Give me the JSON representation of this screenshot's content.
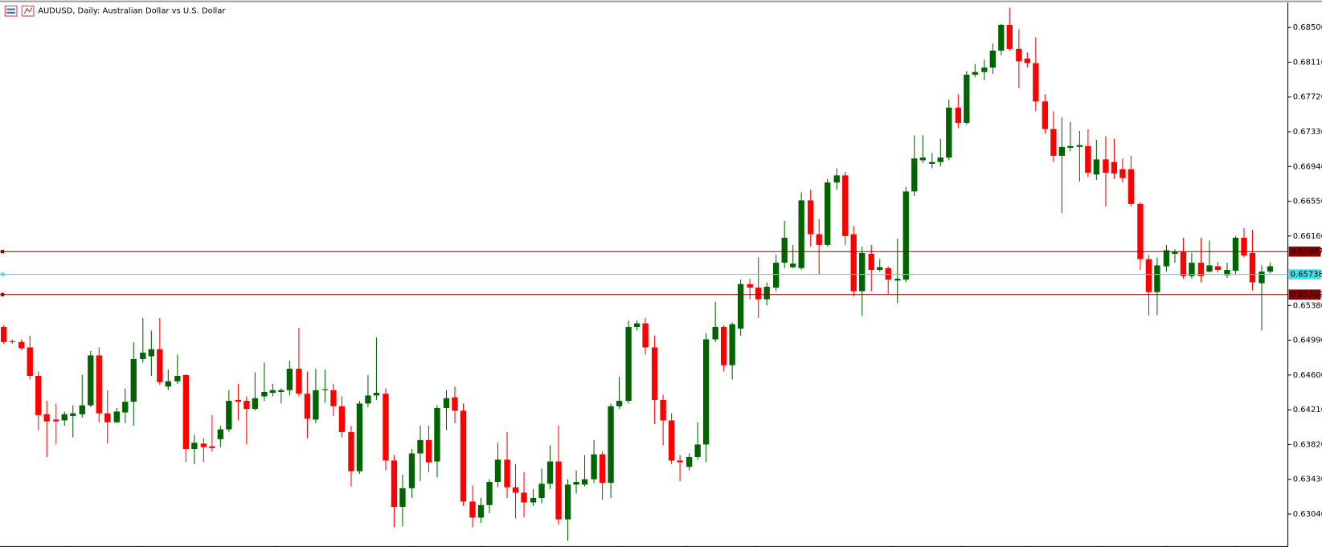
{
  "chart_data": {
    "type": "candlestick",
    "title": "AUDUSD, Daily:  Australian Dollar vs U.S. Dollar",
    "up_color": "#006400",
    "down_color": "#ff0000",
    "ylim": [
      0.6268,
      0.6877
    ],
    "yticks": [
      {
        "value": 0.685,
        "label": "0.68500"
      },
      {
        "value": 0.6811,
        "label": "0.68110"
      },
      {
        "value": 0.6772,
        "label": "0.67720"
      },
      {
        "value": 0.6733,
        "label": "0.67330"
      },
      {
        "value": 0.6694,
        "label": "0.66940"
      },
      {
        "value": 0.6655,
        "label": "0.66550"
      },
      {
        "value": 0.6616,
        "label": "0.66160"
      },
      {
        "value": 0.6538,
        "label": "0.65380"
      },
      {
        "value": 0.6499,
        "label": "0.64990"
      },
      {
        "value": 0.646,
        "label": "0.64600"
      },
      {
        "value": 0.6421,
        "label": "0.64210"
      },
      {
        "value": 0.6382,
        "label": "0.63820"
      },
      {
        "value": 0.6343,
        "label": "0.63430"
      },
      {
        "value": 0.6304,
        "label": "0.63040"
      }
    ],
    "hlines": [
      {
        "value": 0.65987,
        "color": "#8b0000"
      },
      {
        "value": 0.65738,
        "color": "#40e0e8"
      },
      {
        "value": 0.65509,
        "color": "#8b0000"
      }
    ],
    "open": [
      0.6514,
      0.6498,
      0.6497,
      0.6491,
      0.6459,
      0.6416,
      0.641,
      0.6409,
      0.6414,
      0.6416,
      0.6426,
      0.6482,
      0.6417,
      0.6407,
      0.6418,
      0.643,
      0.6478,
      0.6481,
      0.6489,
      0.6447,
      0.6453,
      0.646,
      0.6377,
      0.6383,
      0.638,
      0.6388,
      0.6399,
      0.6432,
      0.6431,
      0.6422,
      0.6436,
      0.644,
      0.6441,
      0.6443,
      0.6467,
      0.6439,
      0.641,
      0.6443,
      0.6443,
      0.6425,
      0.6396,
      0.6352,
      0.6428,
      0.6437,
      0.6439,
      0.6364,
      0.6312,
      0.6333,
      0.6372,
      0.6387,
      0.6363,
      0.6423,
      0.6435,
      0.642,
      0.6318,
      0.63,
      0.6314,
      0.634,
      0.6365,
      0.6334,
      0.6328,
      0.6317,
      0.6322,
      0.6338,
      0.6363,
      0.6298,
      0.6337,
      0.6337,
      0.6343,
      0.6371,
      0.6339,
      0.6425,
      0.6431,
      0.6514,
      0.6518,
      0.6491,
      0.6432,
      0.6409,
      0.6364,
      0.6357,
      0.6368,
      0.6382,
      0.65,
      0.6514,
      0.6471,
      0.6512,
      0.6562,
      0.6558,
      0.6545,
      0.6558,
      0.6586,
      0.6581,
      0.658,
      0.6656,
      0.6618,
      0.6606,
      0.6676,
      0.6684,
      0.6618,
      0.6554,
      0.6596,
      0.6578,
      0.658,
      0.6566,
      0.6567,
      0.6666,
      0.6701,
      0.6697,
      0.6699,
      0.6704,
      0.676,
      0.6743,
      0.6797,
      0.68,
      0.6805,
      0.6824,
      0.6853,
      0.6826,
      0.6815,
      0.681,
      0.6767,
      0.6736,
      0.6706,
      0.6715,
      0.6716,
      0.6717,
      0.6685,
      0.6702,
      0.6699,
      0.6691,
      0.6691,
      0.6652,
      0.659,
      0.6553,
      0.6582,
      0.6596,
      0.6598,
      0.6571,
      0.6586,
      0.6576,
      0.6582,
      0.6572,
      0.6577,
      0.6614,
      0.6597,
      0.6563,
      0.6576
    ],
    "high": [
      0.6516,
      0.65,
      0.65,
      0.6504,
      0.6464,
      0.6431,
      0.6428,
      0.6419,
      0.6426,
      0.646,
      0.6487,
      0.6491,
      0.6443,
      0.6423,
      0.6445,
      0.6497,
      0.6524,
      0.651,
      0.6524,
      0.6466,
      0.6483,
      0.6461,
      0.6393,
      0.6389,
      0.6415,
      0.6403,
      0.6443,
      0.645,
      0.6436,
      0.6463,
      0.6474,
      0.645,
      0.6445,
      0.6476,
      0.6513,
      0.6464,
      0.6467,
      0.6466,
      0.645,
      0.6436,
      0.6403,
      0.6431,
      0.646,
      0.6502,
      0.6445,
      0.637,
      0.6348,
      0.6377,
      0.6403,
      0.6403,
      0.6426,
      0.6443,
      0.6447,
      0.6428,
      0.6336,
      0.6322,
      0.6343,
      0.6384,
      0.6396,
      0.636,
      0.6351,
      0.6332,
      0.6355,
      0.6381,
      0.6403,
      0.6343,
      0.6353,
      0.637,
      0.6387,
      0.6374,
      0.6428,
      0.6458,
      0.6521,
      0.6521,
      0.6524,
      0.6504,
      0.6438,
      0.6417,
      0.637,
      0.6372,
      0.6407,
      0.6507,
      0.6542,
      0.6516,
      0.6519,
      0.6567,
      0.6568,
      0.6592,
      0.6564,
      0.6595,
      0.6633,
      0.6606,
      0.6665,
      0.6668,
      0.6635,
      0.668,
      0.6692,
      0.6688,
      0.6627,
      0.6604,
      0.6606,
      0.659,
      0.6582,
      0.6613,
      0.6671,
      0.6729,
      0.6729,
      0.6709,
      0.6725,
      0.6769,
      0.6775,
      0.6801,
      0.6809,
      0.6814,
      0.6832,
      0.6854,
      0.6872,
      0.6848,
      0.6822,
      0.6839,
      0.6775,
      0.6756,
      0.6749,
      0.6744,
      0.6734,
      0.6736,
      0.6724,
      0.6728,
      0.6725,
      0.6703,
      0.6706,
      0.6654,
      0.6595,
      0.6592,
      0.6606,
      0.6601,
      0.6614,
      0.6597,
      0.6614,
      0.6611,
      0.6587,
      0.6586,
      0.6616,
      0.6625,
      0.6623,
      0.6583,
      0.6586
    ],
    "low": [
      0.6495,
      0.6495,
      0.6488,
      0.6455,
      0.6398,
      0.6368,
      0.6382,
      0.6403,
      0.639,
      0.6412,
      0.6424,
      0.6407,
      0.6383,
      0.6406,
      0.6406,
      0.6403,
      0.6474,
      0.6459,
      0.6449,
      0.6443,
      0.645,
      0.6362,
      0.636,
      0.6362,
      0.6374,
      0.6379,
      0.6396,
      0.6409,
      0.6382,
      0.642,
      0.6431,
      0.6436,
      0.6428,
      0.6437,
      0.6436,
      0.6389,
      0.6406,
      0.6429,
      0.6414,
      0.639,
      0.6335,
      0.6349,
      0.6424,
      0.6432,
      0.6353,
      0.6289,
      0.629,
      0.6322,
      0.6341,
      0.6351,
      0.6345,
      0.6398,
      0.6406,
      0.6313,
      0.6289,
      0.6294,
      0.6305,
      0.6334,
      0.6322,
      0.6299,
      0.63,
      0.6313,
      0.6316,
      0.6332,
      0.6292,
      0.6274,
      0.6327,
      0.6335,
      0.6339,
      0.632,
      0.6322,
      0.6422,
      0.6428,
      0.651,
      0.6483,
      0.6405,
      0.6381,
      0.636,
      0.6341,
      0.6353,
      0.6365,
      0.6362,
      0.6497,
      0.6464,
      0.6455,
      0.6504,
      0.6545,
      0.6524,
      0.6538,
      0.6554,
      0.658,
      0.658,
      0.6578,
      0.6604,
      0.6573,
      0.6604,
      0.6668,
      0.6606,
      0.6548,
      0.6526,
      0.6554,
      0.6576,
      0.6551,
      0.6541,
      0.6564,
      0.6661,
      0.6698,
      0.6692,
      0.6694,
      0.6701,
      0.6737,
      0.6741,
      0.6794,
      0.6791,
      0.6798,
      0.6819,
      0.6824,
      0.6782,
      0.6805,
      0.6756,
      0.6731,
      0.6699,
      0.6642,
      0.6711,
      0.6677,
      0.6682,
      0.6679,
      0.6649,
      0.668,
      0.6676,
      0.6649,
      0.6578,
      0.6527,
      0.6527,
      0.6576,
      0.6586,
      0.6568,
      0.6568,
      0.6564,
      0.6575,
      0.6575,
      0.6569,
      0.6573,
      0.6592,
      0.6555,
      0.651,
      0.6574
    ],
    "close": [
      0.6497,
      0.6497,
      0.649,
      0.6459,
      0.6415,
      0.6408,
      0.6408,
      0.6416,
      0.6417,
      0.6426,
      0.6482,
      0.6417,
      0.6407,
      0.6419,
      0.643,
      0.6478,
      0.6485,
      0.6489,
      0.6452,
      0.6453,
      0.6459,
      0.6377,
      0.6384,
      0.6379,
      0.6378,
      0.6399,
      0.6431,
      0.643,
      0.6422,
      0.6434,
      0.6441,
      0.6443,
      0.6443,
      0.6467,
      0.6439,
      0.6411,
      0.6443,
      0.6444,
      0.6425,
      0.6396,
      0.6352,
      0.6428,
      0.6437,
      0.644,
      0.6364,
      0.6312,
      0.6333,
      0.6372,
      0.6387,
      0.6362,
      0.6423,
      0.6434,
      0.642,
      0.6318,
      0.63,
      0.6314,
      0.634,
      0.6365,
      0.6334,
      0.6328,
      0.6317,
      0.6322,
      0.6338,
      0.6363,
      0.6298,
      0.6337,
      0.634,
      0.6343,
      0.6371,
      0.6339,
      0.6425,
      0.6431,
      0.6514,
      0.6518,
      0.6491,
      0.6432,
      0.6409,
      0.6364,
      0.6362,
      0.6368,
      0.6382,
      0.65,
      0.6514,
      0.6471,
      0.6517,
      0.6562,
      0.6558,
      0.6545,
      0.6559,
      0.6586,
      0.6614,
      0.6585,
      0.6656,
      0.6618,
      0.6606,
      0.6676,
      0.6684,
      0.6616,
      0.6554,
      0.6597,
      0.6578,
      0.6581,
      0.6567,
      0.6568,
      0.6666,
      0.6703,
      0.6704,
      0.6699,
      0.6704,
      0.676,
      0.6743,
      0.6797,
      0.68,
      0.6805,
      0.6824,
      0.6853,
      0.6826,
      0.6812,
      0.681,
      0.6767,
      0.6736,
      0.6706,
      0.6716,
      0.6717,
      0.6718,
      0.6687,
      0.6702,
      0.6687,
      0.6686,
      0.6681,
      0.6652,
      0.659,
      0.6553,
      0.6583,
      0.66,
      0.6598,
      0.6571,
      0.6586,
      0.6571,
      0.6583,
      0.6578,
      0.6578,
      0.6614,
      0.6594,
      0.6564,
      0.6576,
      0.6582
    ]
  }
}
